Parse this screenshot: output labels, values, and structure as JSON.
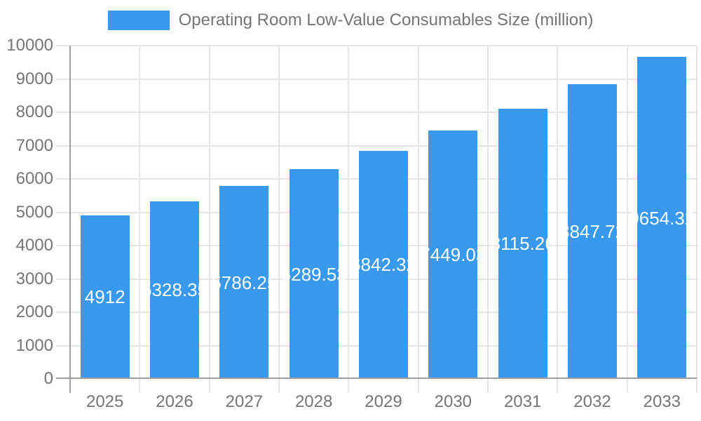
{
  "legend": {
    "label": "Operating Room Low-Value Consumables Size (million)"
  },
  "chart_data": {
    "type": "bar",
    "title": "Operating Room Low-Value Consumables Size (million)",
    "categories": [
      "2025",
      "2026",
      "2027",
      "2028",
      "2029",
      "2030",
      "2031",
      "2032",
      "2033"
    ],
    "series": [
      {
        "name": "Operating Room Low-Value Consumables Size (million)",
        "values": [
          4912,
          5328.35,
          5786.25,
          6289.53,
          6842.32,
          7449.03,
          8115.26,
          8847.72,
          9654.32
        ]
      }
    ],
    "bar_value_labels": [
      "4912",
      "5328.35",
      "5786.25",
      "6289.53",
      "6842.32",
      "7449.03",
      "8115.26",
      "8847.72",
      "9654.32"
    ],
    "xlabel": "",
    "ylabel": "",
    "ylim": [
      0,
      10000
    ],
    "ytick_step": 1000,
    "ytick_labels": [
      "0",
      "1000",
      "2000",
      "3000",
      "4000",
      "5000",
      "6000",
      "7000",
      "8000",
      "9000",
      "10000"
    ],
    "grid": true,
    "legend_position": "top",
    "colors": {
      "bar": "#3899EE",
      "grid": "#E5E5E5",
      "axis": "#9E9E9E",
      "text": "#757575",
      "bar_label": "#FFFFFF",
      "background": "#FFFFFF"
    }
  }
}
